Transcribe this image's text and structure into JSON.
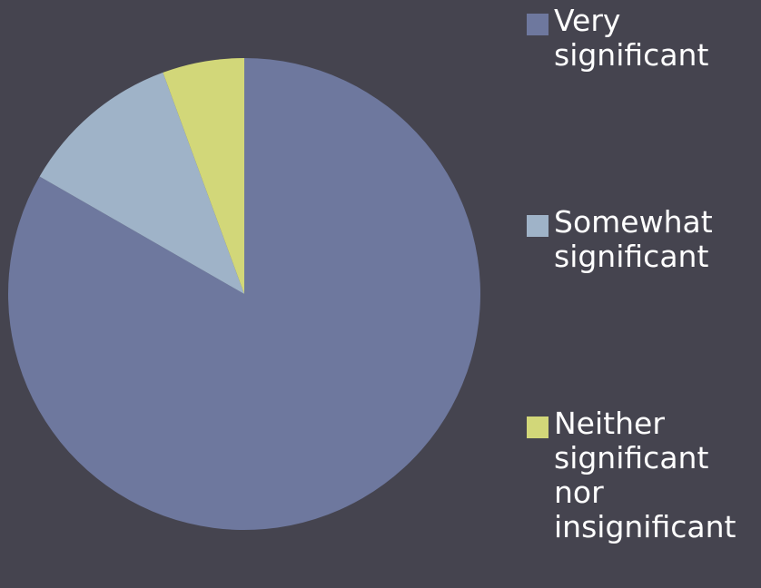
{
  "chart_data": {
    "type": "pie",
    "title": "",
    "series": [
      {
        "name": "Very significant",
        "value": 83.3,
        "color": "#6e789e"
      },
      {
        "name": "Somewhat significant",
        "value": 11.1,
        "color": "#9fb3c8"
      },
      {
        "name": "Neither significant nor insignificant",
        "value": 5.6,
        "color": "#d2d779"
      }
    ],
    "legend_position": "right"
  }
}
